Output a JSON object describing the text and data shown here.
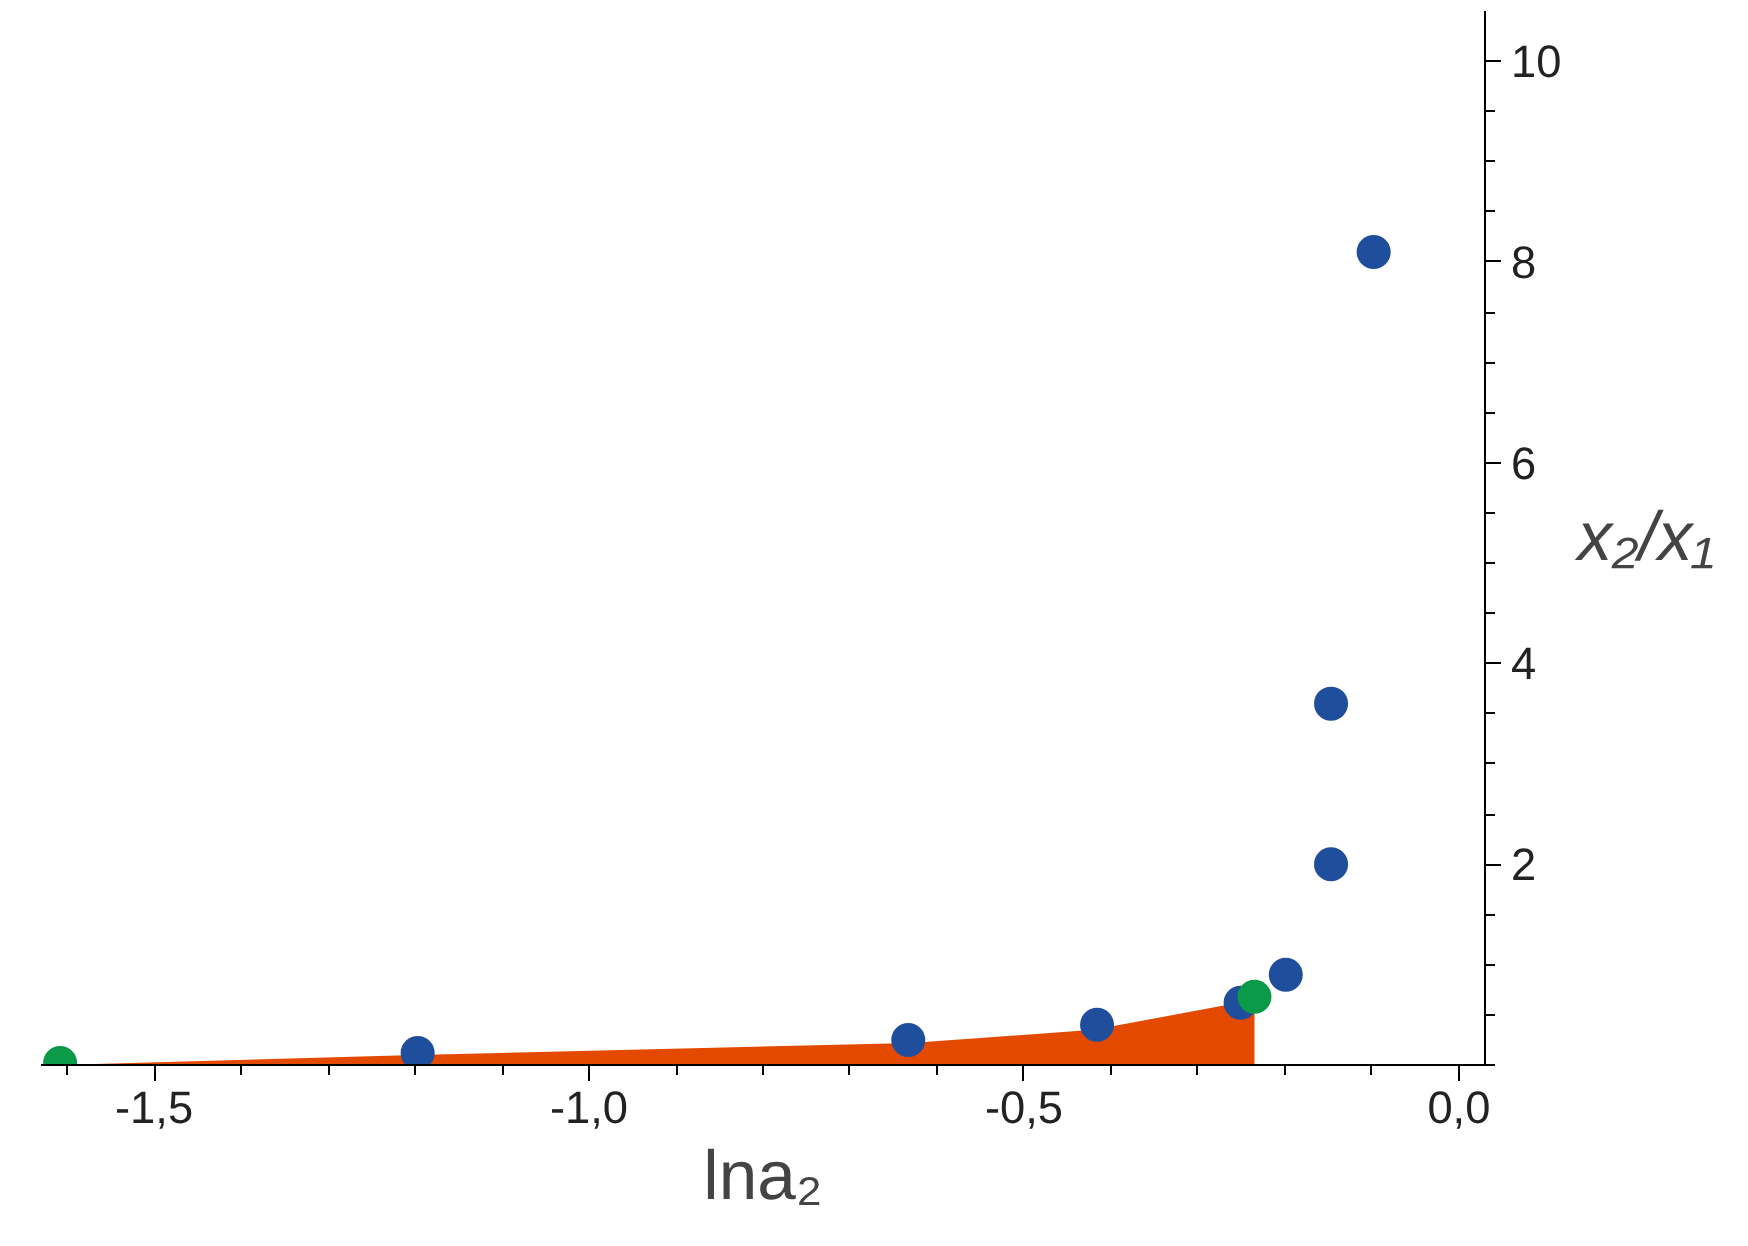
{
  "chart_data": {
    "type": "scatter",
    "xlabel": "lna₂",
    "ylabel": "x₂/x₁",
    "grid": false,
    "xlim": [
      -1.63,
      0.03
    ],
    "ylim": [
      0,
      10.5
    ],
    "xticks": [
      {
        "value": -1.5,
        "label": "-1,5"
      },
      {
        "value": -1.0,
        "label": "-1,0"
      },
      {
        "value": -0.5,
        "label": "-0,5"
      },
      {
        "value": 0.0,
        "label": "0,0"
      }
    ],
    "yticks": [
      2,
      4,
      6,
      8,
      10
    ],
    "series": [
      {
        "type": "area",
        "color": "#e34a00",
        "x": [
          -1.61,
          -1.2,
          -0.63,
          -0.42,
          -0.235
        ],
        "values": [
          0,
          0.1,
          0.22,
          0.35,
          0.65
        ]
      },
      {
        "marker": "circle",
        "color": "#1f4e9c",
        "x": [
          -1.197,
          -0.633,
          -0.416,
          -0.251,
          -0.199,
          -0.147,
          -0.147,
          -0.098
        ],
        "values": [
          0.12,
          0.25,
          0.4,
          0.62,
          0.9,
          2.0,
          3.6,
          8.1
        ]
      },
      {
        "marker": "circle",
        "color": "#0a9a48",
        "x": [
          -1.608,
          -0.235
        ],
        "values": [
          0.02,
          0.68
        ]
      }
    ]
  }
}
